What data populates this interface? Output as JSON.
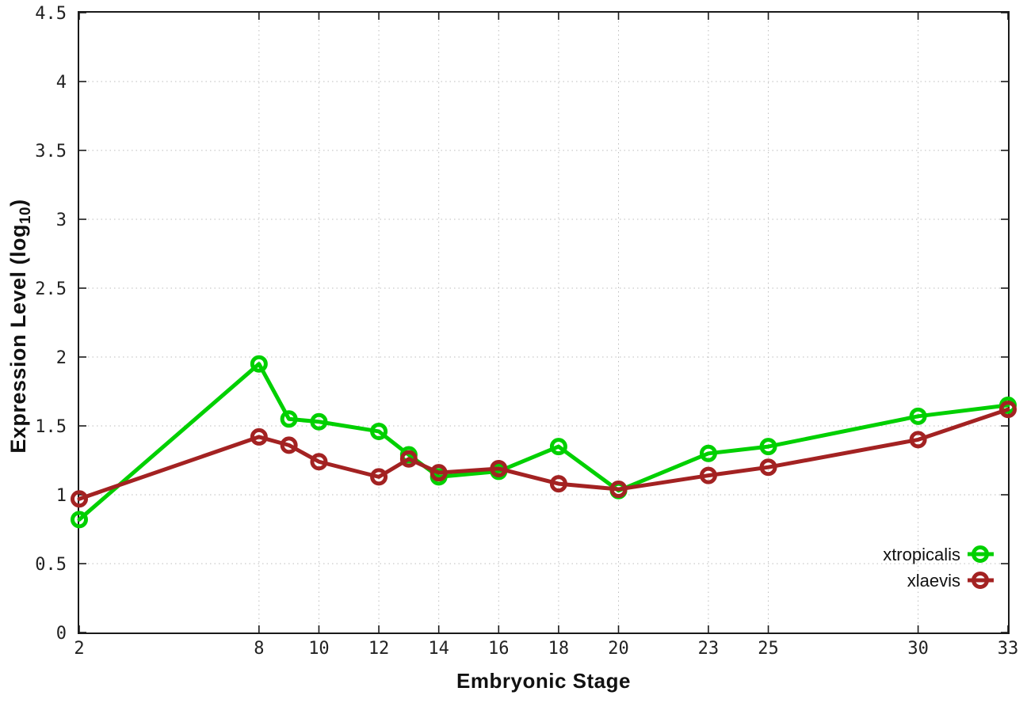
{
  "chart_data": {
    "type": "line",
    "title": "",
    "xlabel": "Embryonic Stage",
    "ylabel": "Expression Level (log10)",
    "ylabel_parts": {
      "prefix": "Expression Level (log",
      "sub": "10",
      "suffix": ")"
    },
    "x": [
      2,
      8,
      9,
      10,
      12,
      13,
      14,
      16,
      18,
      20,
      23,
      25,
      30,
      33
    ],
    "xticks": [
      2,
      8,
      10,
      12,
      14,
      16,
      18,
      20,
      23,
      25,
      30,
      33
    ],
    "yticks": [
      0,
      0.5,
      1,
      1.5,
      2,
      2.5,
      3,
      3.5,
      4,
      4.5
    ],
    "xlim": [
      2,
      33
    ],
    "ylim": [
      0,
      4.5
    ],
    "grid": true,
    "legend_position": "inside-right-lower",
    "series": [
      {
        "name": "xtropicalis",
        "color": "#00d000",
        "values": [
          0.82,
          1.95,
          1.55,
          1.53,
          1.46,
          1.29,
          1.13,
          1.17,
          1.35,
          1.03,
          1.3,
          1.35,
          1.57,
          1.65
        ]
      },
      {
        "name": "xlaevis",
        "color": "#a32222",
        "values": [
          0.97,
          1.42,
          1.36,
          1.24,
          1.13,
          1.26,
          1.16,
          1.19,
          1.08,
          1.04,
          1.14,
          1.2,
          1.4,
          1.62
        ]
      }
    ],
    "style": {
      "grid_color": "#bdbdbd",
      "border_color": "#1a1a1a",
      "tick_label_color": "#222222",
      "background": "#ffffff"
    }
  }
}
